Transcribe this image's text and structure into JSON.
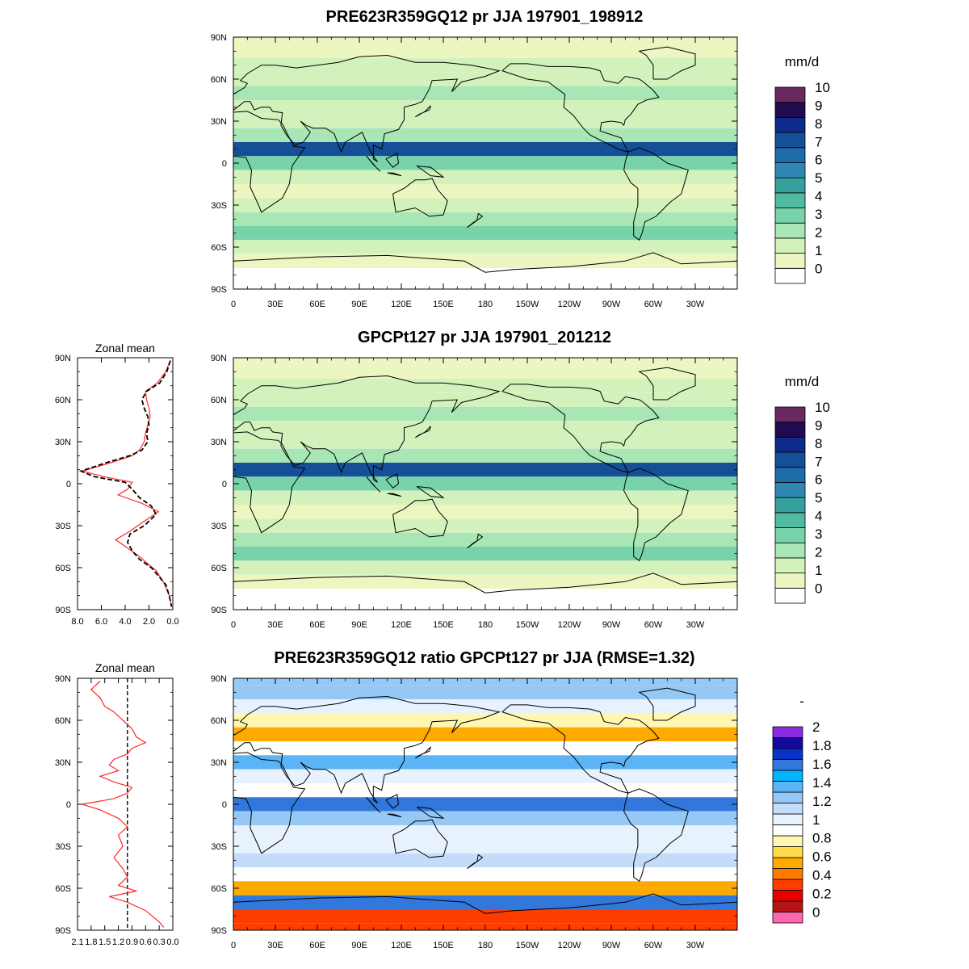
{
  "palettes": {
    "precip": [
      "#ffffff",
      "#ecf6c0",
      "#d3f2bb",
      "#a9e6b5",
      "#78d3ab",
      "#50bb9e",
      "#36a19a",
      "#2f88b4",
      "#1f6cab",
      "#154f98",
      "#0e2a8a",
      "#200a50",
      "#6a2a60"
    ],
    "ratio": [
      "#ff66b2",
      "#b41414",
      "#e60000",
      "#ff3c00",
      "#ff7800",
      "#ffaa00",
      "#ffdc4a",
      "#fff7b0",
      "#ffffff",
      "#e8f2ff",
      "#c4dcfa",
      "#96c8f5",
      "#5ab4f5",
      "#00b4ff",
      "#3278dc",
      "#0a32c8",
      "#140aa0",
      "#8a2be2"
    ]
  },
  "chart_data": [
    {
      "type": "heatmap",
      "id": "model",
      "title": "PRE623R359GQ12 pr JJA 197901_198912",
      "units": "mm/d",
      "x_ticks": [
        "0",
        "30E",
        "60E",
        "90E",
        "120E",
        "150E",
        "180",
        "150W",
        "120W",
        "90W",
        "60W",
        "30W"
      ],
      "y_ticks": [
        "90N",
        "60N",
        "30N",
        "0",
        "30S",
        "60S",
        "90S"
      ],
      "levels": [
        "0",
        "1",
        "2",
        "3",
        "4",
        "5",
        "6",
        "7",
        "8",
        "9",
        "10"
      ],
      "palette": "precip",
      "bands": [
        {
          "lat": 80,
          "value": 1.2
        },
        {
          "lat": 70,
          "value": 1.4
        },
        {
          "lat": 60,
          "value": 2.0
        },
        {
          "lat": 50,
          "value": 2.6
        },
        {
          "lat": 40,
          "value": 1.8
        },
        {
          "lat": 30,
          "value": 1.5
        },
        {
          "lat": 20,
          "value": 2.6
        },
        {
          "lat": 10,
          "value": 7.5
        },
        {
          "lat": 0,
          "value": 3.0
        },
        {
          "lat": -10,
          "value": 1.4
        },
        {
          "lat": -20,
          "value": 1.0
        },
        {
          "lat": -30,
          "value": 1.8
        },
        {
          "lat": -40,
          "value": 2.6
        },
        {
          "lat": -50,
          "value": 3.0
        },
        {
          "lat": -60,
          "value": 2.0
        },
        {
          "lat": -70,
          "value": 0.6
        },
        {
          "lat": -80,
          "value": 0.3
        }
      ]
    },
    {
      "type": "heatmap",
      "id": "obs",
      "title": "GPCPt127 pr JJA 197901_201212",
      "units": "mm/d",
      "x_ticks": [
        "0",
        "30E",
        "60E",
        "90E",
        "120E",
        "150E",
        "180",
        "150W",
        "120W",
        "90W",
        "60W",
        "30W"
      ],
      "y_ticks": [
        "90N",
        "60N",
        "30N",
        "0",
        "30S",
        "60S",
        "90S"
      ],
      "levels": [
        "0",
        "1",
        "2",
        "3",
        "4",
        "5",
        "6",
        "7",
        "8",
        "9",
        "10"
      ],
      "palette": "precip",
      "bands": [
        {
          "lat": 80,
          "value": 1.0
        },
        {
          "lat": 70,
          "value": 1.3
        },
        {
          "lat": 60,
          "value": 2.0
        },
        {
          "lat": 50,
          "value": 2.2
        },
        {
          "lat": 40,
          "value": 1.8
        },
        {
          "lat": 30,
          "value": 1.6
        },
        {
          "lat": 20,
          "value": 2.8
        },
        {
          "lat": 10,
          "value": 7.8
        },
        {
          "lat": 0,
          "value": 3.6
        },
        {
          "lat": -10,
          "value": 1.6
        },
        {
          "lat": -20,
          "value": 1.0
        },
        {
          "lat": -30,
          "value": 1.4
        },
        {
          "lat": -40,
          "value": 2.4
        },
        {
          "lat": -50,
          "value": 3.0
        },
        {
          "lat": -60,
          "value": 1.8
        },
        {
          "lat": -70,
          "value": 0.5
        },
        {
          "lat": -80,
          "value": 0.2
        }
      ],
      "zonal_mean": {
        "title": "Zonal mean",
        "x_ticks": [
          "8.0",
          "6.0",
          "4.0",
          "2.0",
          "0.0"
        ],
        "xlim": [
          8,
          0
        ],
        "series": [
          {
            "color": "#ff2a2a",
            "dashed": false,
            "points": [
              [
                0.2,
                88
              ],
              [
                0.6,
                80
              ],
              [
                1.3,
                72
              ],
              [
                2.3,
                66
              ],
              [
                2.2,
                60
              ],
              [
                2.0,
                54
              ],
              [
                1.9,
                48
              ],
              [
                2.1,
                42
              ],
              [
                2.3,
                36
              ],
              [
                2.4,
                30
              ],
              [
                2.8,
                24
              ],
              [
                3.4,
                20
              ],
              [
                5.2,
                15
              ],
              [
                7.6,
                9
              ],
              [
                5.8,
                5
              ],
              [
                3.4,
                1
              ],
              [
                3.8,
                -4
              ],
              [
                4.6,
                -8
              ],
              [
                2.6,
                -14
              ],
              [
                1.2,
                -20
              ],
              [
                2.6,
                -28
              ],
              [
                3.6,
                -34
              ],
              [
                4.8,
                -40
              ],
              [
                3.8,
                -46
              ],
              [
                2.8,
                -52
              ],
              [
                2.0,
                -58
              ],
              [
                1.4,
                -62
              ],
              [
                0.8,
                -70
              ],
              [
                0.3,
                -80
              ],
              [
                0.1,
                -88
              ]
            ]
          },
          {
            "color": "#000000",
            "dashed": true,
            "points": [
              [
                0.2,
                88
              ],
              [
                0.5,
                80
              ],
              [
                1.1,
                72
              ],
              [
                2.2,
                66
              ],
              [
                2.6,
                60
              ],
              [
                2.4,
                54
              ],
              [
                2.1,
                48
              ],
              [
                2.0,
                42
              ],
              [
                2.2,
                36
              ],
              [
                2.1,
                30
              ],
              [
                2.6,
                24
              ],
              [
                3.6,
                20
              ],
              [
                5.6,
                15
              ],
              [
                7.7,
                9
              ],
              [
                6.6,
                5
              ],
              [
                4.0,
                1
              ],
              [
                3.4,
                -4
              ],
              [
                2.8,
                -10
              ],
              [
                1.8,
                -16
              ],
              [
                1.4,
                -22
              ],
              [
                2.4,
                -30
              ],
              [
                3.6,
                -36
              ],
              [
                3.8,
                -42
              ],
              [
                3.4,
                -48
              ],
              [
                2.8,
                -54
              ],
              [
                1.8,
                -60
              ],
              [
                1.2,
                -66
              ],
              [
                0.6,
                -72
              ],
              [
                0.3,
                -80
              ],
              [
                0.1,
                -88
              ]
            ]
          }
        ]
      }
    },
    {
      "type": "heatmap",
      "id": "ratio",
      "title": "PRE623R359GQ12 ratio GPCPt127 pr JJA (RMSE=1.32)",
      "units": "-",
      "x_ticks": [
        "0",
        "30E",
        "60E",
        "90E",
        "120E",
        "150E",
        "180",
        "150W",
        "120W",
        "90W",
        "60W",
        "30W"
      ],
      "y_ticks": [
        "90N",
        "60N",
        "30N",
        "0",
        "30S",
        "60S",
        "90S"
      ],
      "levels": [
        "0",
        "0.2",
        "0.4",
        "0.6",
        "0.8",
        "1",
        "1.2",
        "1.4",
        "1.6",
        "1.8",
        "2"
      ],
      "palette": "ratio",
      "bands": [
        {
          "lat": 80,
          "value": 1.3
        },
        {
          "lat": 70,
          "value": 1.1
        },
        {
          "lat": 60,
          "value": 0.8
        },
        {
          "lat": 50,
          "value": 0.6
        },
        {
          "lat": 40,
          "value": 0.9
        },
        {
          "lat": 30,
          "value": 1.4
        },
        {
          "lat": 20,
          "value": 1.1
        },
        {
          "lat": 10,
          "value": 0.9
        },
        {
          "lat": 0,
          "value": 1.6
        },
        {
          "lat": -10,
          "value": 1.3
        },
        {
          "lat": -20,
          "value": 1.1
        },
        {
          "lat": -30,
          "value": 1.0
        },
        {
          "lat": -40,
          "value": 1.2
        },
        {
          "lat": -50,
          "value": 0.9
        },
        {
          "lat": -60,
          "value": 0.6
        },
        {
          "lat": -70,
          "value": 1.6
        },
        {
          "lat": -80,
          "value": 0.3
        }
      ],
      "zonal_mean": {
        "title": "Zonal mean",
        "x_ticks": [
          "2.1",
          "1.8",
          "1.5",
          "1.2",
          "0.9",
          "0.6",
          "0.3",
          "0.0"
        ],
        "xlim": [
          2.1,
          0
        ],
        "reference": 1.0,
        "series": [
          {
            "color": "#ff2a2a",
            "dashed": false,
            "points": [
              [
                1.6,
                88
              ],
              [
                1.8,
                82
              ],
              [
                1.6,
                76
              ],
              [
                1.5,
                70
              ],
              [
                1.3,
                66
              ],
              [
                1.1,
                60
              ],
              [
                0.9,
                54
              ],
              [
                0.8,
                48
              ],
              [
                0.6,
                44
              ],
              [
                0.9,
                40
              ],
              [
                1.0,
                36
              ],
              [
                1.3,
                32
              ],
              [
                1.4,
                28
              ],
              [
                1.2,
                24
              ],
              [
                1.6,
                20
              ],
              [
                1.3,
                16
              ],
              [
                0.9,
                12
              ],
              [
                1.0,
                8
              ],
              [
                1.3,
                4
              ],
              [
                2.0,
                0
              ],
              [
                1.6,
                -4
              ],
              [
                1.2,
                -10
              ],
              [
                1.0,
                -16
              ],
              [
                1.2,
                -22
              ],
              [
                1.1,
                -30
              ],
              [
                1.3,
                -38
              ],
              [
                1.1,
                -46
              ],
              [
                1.0,
                -52
              ],
              [
                1.2,
                -58
              ],
              [
                0.8,
                -62
              ],
              [
                1.4,
                -66
              ],
              [
                1.0,
                -70
              ],
              [
                0.6,
                -76
              ],
              [
                0.3,
                -84
              ],
              [
                0.2,
                -88
              ]
            ]
          }
        ]
      }
    }
  ]
}
